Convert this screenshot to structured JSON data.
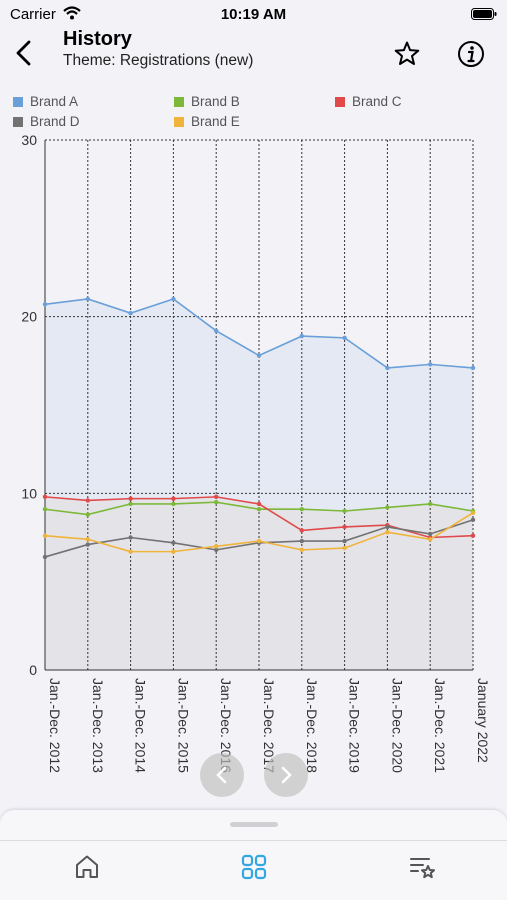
{
  "status_bar": {
    "carrier": "Carrier",
    "time": "10:19 AM"
  },
  "header": {
    "title": "History",
    "subtitle": "Theme: Registrations (new)"
  },
  "icons": {
    "back": "chevron-left-icon",
    "favorite": "star-icon",
    "info": "info-icon",
    "prev": "chevron-left-icon",
    "next": "chevron-right-icon",
    "tab_home": "home-icon",
    "tab_dashboard": "grid-icon",
    "tab_favorites": "list-star-icon"
  },
  "colors": {
    "accent": "#34a7e1",
    "brand_a": "#6a9fd8",
    "brand_b": "#7cb83a",
    "brand_c": "#e04a4a",
    "brand_d": "#727272",
    "brand_e": "#f0b33c"
  },
  "chart_data": {
    "type": "line",
    "categories": [
      "Jan.-Dec. 2012",
      "Jan.-Dec. 2013",
      "Jan.-Dec. 2014",
      "Jan.-Dec. 2015",
      "Jan.-Dec. 2016",
      "Jan.-Dec. 2017",
      "Jan.-Dec. 2018",
      "Jan.-Dec. 2019",
      "Jan.-Dec. 2020",
      "Jan.-Dec. 2021",
      "January 2022"
    ],
    "ylim": [
      0,
      30
    ],
    "yticks": [
      "0",
      "10",
      "20",
      "30"
    ],
    "grid": true,
    "legend_position": "top",
    "series": [
      {
        "name": "Brand A",
        "color": "#6a9fd8",
        "values": [
          20.7,
          21.0,
          20.2,
          21.0,
          19.2,
          17.8,
          18.9,
          18.8,
          17.1,
          17.3,
          17.1
        ]
      },
      {
        "name": "Brand B",
        "color": "#7cb83a",
        "values": [
          9.1,
          8.8,
          9.4,
          9.4,
          9.5,
          9.1,
          9.1,
          9.0,
          9.2,
          9.4,
          9.0
        ]
      },
      {
        "name": "Brand C",
        "color": "#e04a4a",
        "values": [
          9.8,
          9.6,
          9.7,
          9.7,
          9.8,
          9.4,
          7.9,
          8.1,
          8.2,
          7.5,
          7.6
        ]
      },
      {
        "name": "Brand D",
        "color": "#727272",
        "values": [
          6.4,
          7.1,
          7.5,
          7.2,
          6.8,
          7.2,
          7.3,
          7.3,
          8.1,
          7.7,
          8.5
        ]
      },
      {
        "name": "Brand E",
        "color": "#f0b33c",
        "values": [
          7.6,
          7.4,
          6.7,
          6.7,
          7.0,
          7.3,
          6.8,
          6.9,
          7.8,
          7.4,
          8.9
        ]
      }
    ]
  }
}
